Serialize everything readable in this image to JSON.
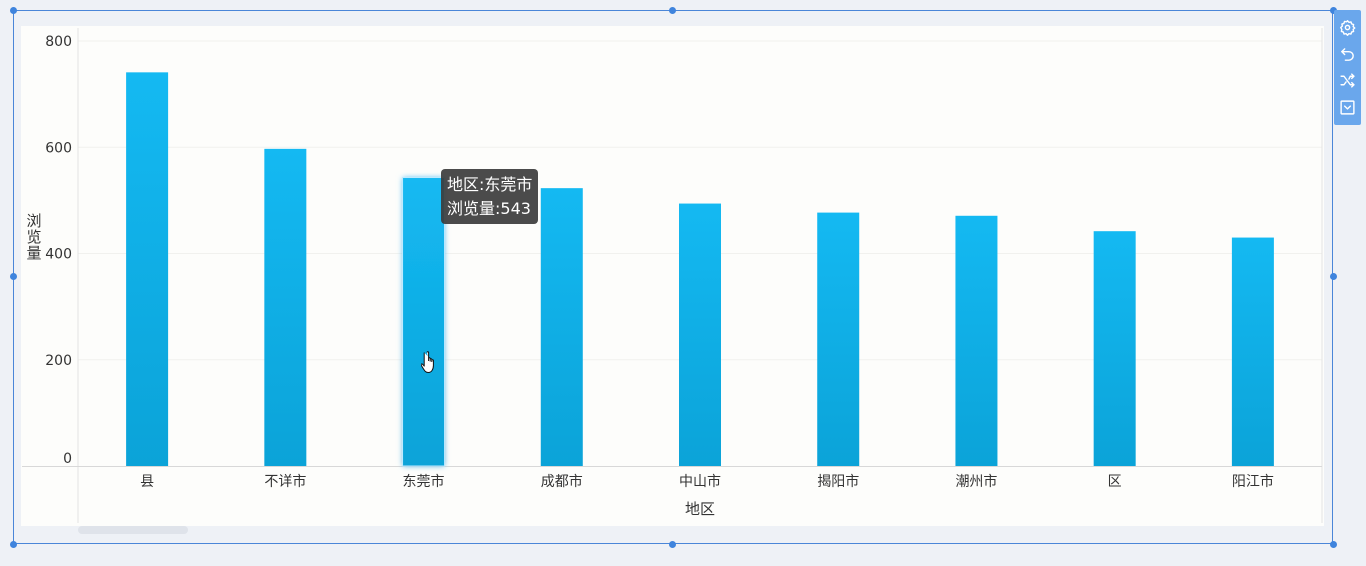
{
  "chart_data": {
    "type": "bar",
    "categories": [
      "县",
      "不详市",
      "东莞市",
      "成都市",
      "中山市",
      "揭阳市",
      "潮州市",
      "区",
      "阳江市"
    ],
    "values": [
      741,
      597,
      543,
      523,
      494,
      477,
      471,
      442,
      430
    ],
    "xlabel": "地区",
    "ylabel": "浏览量",
    "ylim": [
      0,
      800
    ],
    "yticks": [
      0,
      200,
      400,
      600,
      800
    ],
    "grid": true,
    "bar_color_top": "#14b9f2",
    "bar_color_bottom": "#0ba3d8",
    "highlighted_category": "东莞市"
  },
  "tooltip": {
    "line1": "地区:东莞市",
    "line2": "浏览量:543"
  },
  "toolbar": {
    "icons": [
      "gear-icon",
      "undo-icon",
      "shuffle-icon",
      "dropdown-box-icon"
    ]
  },
  "colors": {
    "selection": "#4a86d8",
    "toolbar": "#6aa7ec",
    "background": "#eef1f6",
    "plot_bg": "#fdfdfb"
  }
}
